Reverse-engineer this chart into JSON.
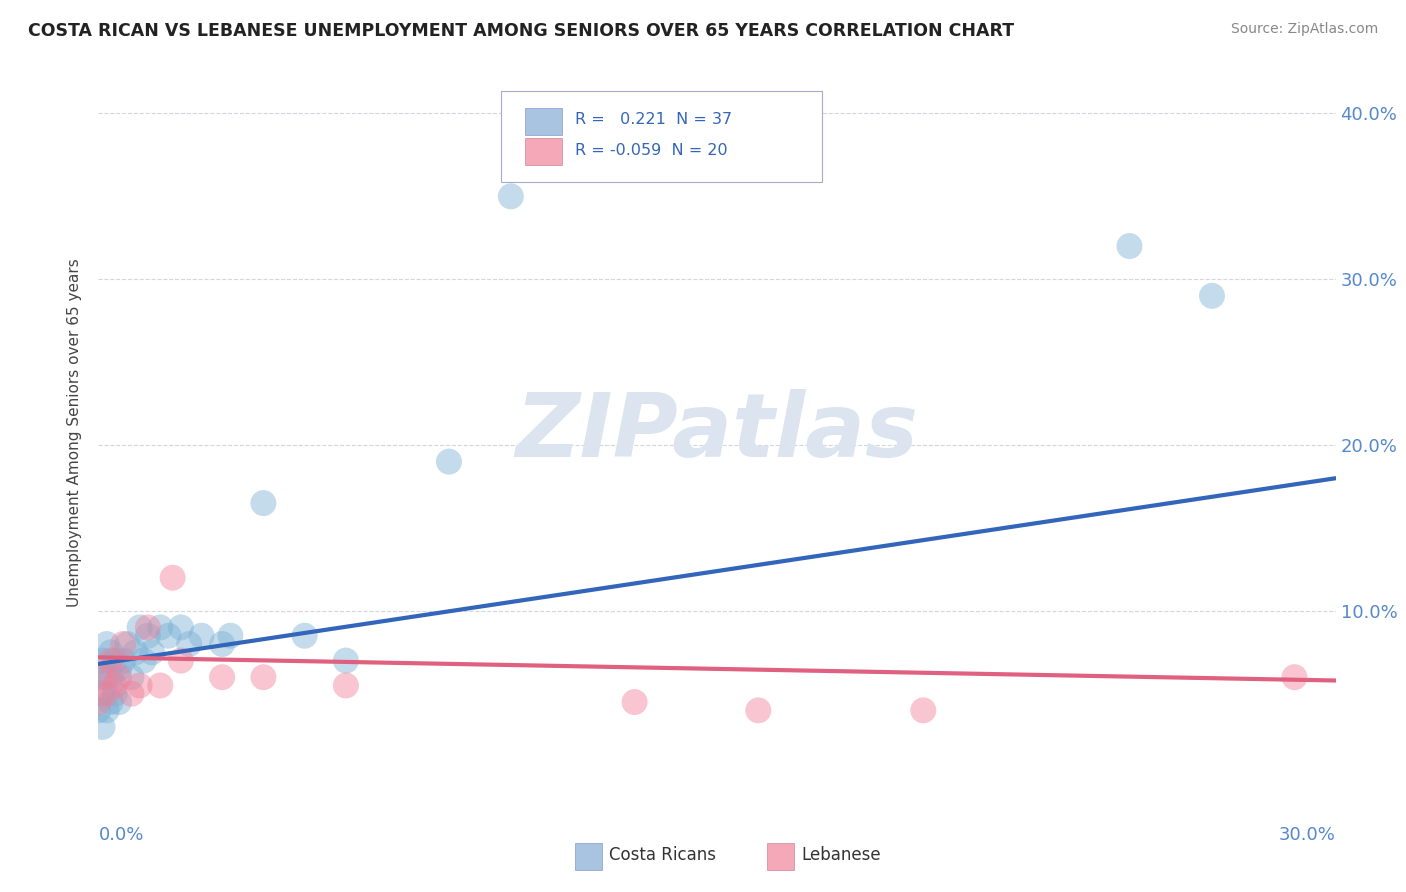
{
  "title": "COSTA RICAN VS LEBANESE UNEMPLOYMENT AMONG SENIORS OVER 65 YEARS CORRELATION CHART",
  "source": "Source: ZipAtlas.com",
  "ylabel": "Unemployment Among Seniors over 65 years",
  "xlim": [
    0.0,
    0.3
  ],
  "ylim": [
    -0.005,
    0.42
  ],
  "scatter_color1": "#7ab0d4",
  "scatter_color2": "#f08098",
  "line_color1": "#3366bb",
  "line_color2": "#e06080",
  "legend_color1": "#a8c4e0",
  "legend_color2": "#f4a8b8",
  "watermark_color": "#dce4f0",
  "cr_x": [
    0.0,
    0.0,
    0.001,
    0.001,
    0.001,
    0.002,
    0.002,
    0.002,
    0.003,
    0.003,
    0.003,
    0.004,
    0.004,
    0.005,
    0.005,
    0.006,
    0.007,
    0.008,
    0.009,
    0.01,
    0.011,
    0.012,
    0.013,
    0.015,
    0.017,
    0.02,
    0.022,
    0.025,
    0.03,
    0.032,
    0.04,
    0.05,
    0.06,
    0.085,
    0.1,
    0.25,
    0.27
  ],
  "cr_y": [
    0.04,
    0.06,
    0.03,
    0.05,
    0.07,
    0.04,
    0.06,
    0.08,
    0.045,
    0.06,
    0.075,
    0.05,
    0.07,
    0.045,
    0.065,
    0.07,
    0.08,
    0.06,
    0.075,
    0.09,
    0.07,
    0.085,
    0.075,
    0.09,
    0.085,
    0.09,
    0.08,
    0.085,
    0.08,
    0.085,
    0.165,
    0.085,
    0.07,
    0.19,
    0.35,
    0.32,
    0.29
  ],
  "lb_x": [
    0.0,
    0.001,
    0.002,
    0.003,
    0.004,
    0.005,
    0.006,
    0.008,
    0.01,
    0.012,
    0.015,
    0.018,
    0.02,
    0.03,
    0.04,
    0.06,
    0.13,
    0.16,
    0.2,
    0.29
  ],
  "lb_y": [
    0.045,
    0.06,
    0.05,
    0.07,
    0.055,
    0.06,
    0.08,
    0.05,
    0.055,
    0.09,
    0.055,
    0.12,
    0.07,
    0.06,
    0.06,
    0.055,
    0.045,
    0.04,
    0.04,
    0.06
  ],
  "cr_line_x": [
    0.0,
    0.3
  ],
  "cr_line_y": [
    0.068,
    0.18
  ],
  "lb_line_x": [
    0.0,
    0.3
  ],
  "lb_line_y": [
    0.072,
    0.058
  ]
}
